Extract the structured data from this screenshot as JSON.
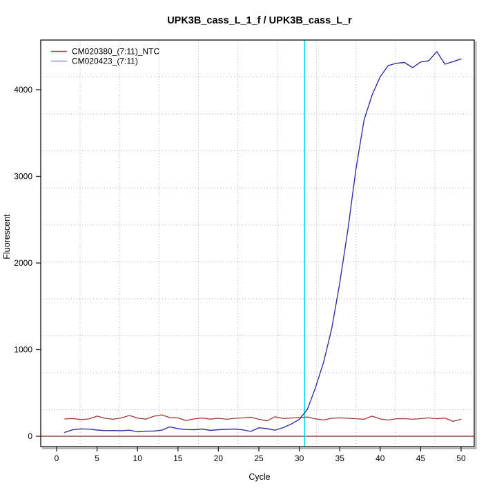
{
  "chart_data": {
    "type": "line",
    "title": "UPK3B_cass_L_1_f / UPK3B_cass_L_r",
    "xlabel": "Cycle",
    "ylabel": "Fluorescent",
    "x_ticks": [
      0,
      5,
      10,
      15,
      20,
      25,
      30,
      35,
      40,
      45,
      50
    ],
    "y_ticks": [
      0,
      1000,
      2000,
      3000,
      4000
    ],
    "xlim": [
      -2.0,
      52.4
    ],
    "ylim": [
      -120,
      4575
    ],
    "grid": {
      "style": "dotted",
      "divisions_x": 11,
      "divisions_y": 11,
      "color": "#ADADAD"
    },
    "legend_position": "top-left",
    "x": [
      1,
      2,
      3,
      4,
      5,
      6,
      7,
      8,
      9,
      10,
      11,
      12,
      13,
      14,
      15,
      16,
      17,
      18,
      19,
      20,
      21,
      22,
      23,
      24,
      25,
      26,
      27,
      28,
      29,
      30,
      31,
      32,
      33,
      34,
      35,
      36,
      37,
      38,
      39,
      40,
      41,
      42,
      43,
      44,
      45,
      46,
      47,
      48,
      49,
      50
    ],
    "series": [
      {
        "name": "CM020380_(7:11)_NTC",
        "color": "#A03434",
        "legend_color": "#B04A4A",
        "values": [
          200,
          205,
          192,
          200,
          232,
          207,
          196,
          212,
          240,
          210,
          198,
          230,
          247,
          215,
          212,
          182,
          200,
          210,
          198,
          207,
          196,
          207,
          212,
          220,
          196,
          178,
          225,
          205,
          210,
          216,
          222,
          200,
          188,
          207,
          213,
          207,
          202,
          196,
          232,
          200,
          187,
          202,
          203,
          196,
          203,
          212,
          202,
          210,
          172,
          196
        ]
      },
      {
        "name": "CM020423_(7:11)",
        "color": "#3232A6",
        "legend_color": "#8C96D8",
        "values": [
          45,
          75,
          85,
          82,
          72,
          65,
          66,
          64,
          70,
          52,
          58,
          60,
          70,
          108,
          88,
          78,
          76,
          84,
          68,
          76,
          80,
          84,
          74,
          56,
          98,
          88,
          70,
          100,
          140,
          195,
          310,
          560,
          855,
          1240,
          1770,
          2380,
          3080,
          3650,
          3940,
          4150,
          4280,
          4305,
          4315,
          4255,
          4320,
          4335,
          4440,
          4295,
          4325,
          4355
        ]
      }
    ],
    "reference_lines": {
      "zero_line": {
        "orientation": "horizontal",
        "y": 0,
        "color": "#8B1C1C"
      },
      "threshold_line": {
        "orientation": "vertical",
        "x": 30.65,
        "color": "#00DFEF"
      }
    }
  }
}
